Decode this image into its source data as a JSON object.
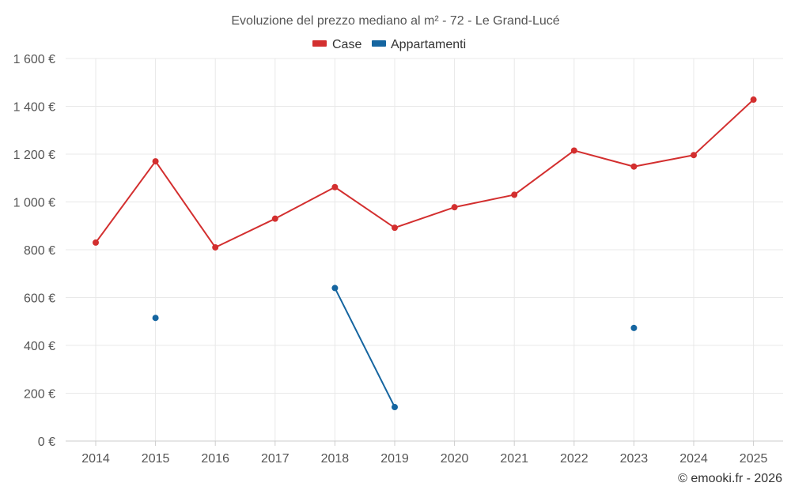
{
  "chart_data": {
    "type": "line",
    "title": "Evoluzione del prezzo mediano al m² - 72 - Le Grand-Lucé",
    "categories": [
      "2014",
      "2015",
      "2016",
      "2017",
      "2018",
      "2019",
      "2020",
      "2021",
      "2022",
      "2023",
      "2024",
      "2025"
    ],
    "series": [
      {
        "name": "Case",
        "color": "#d32f2f",
        "values": [
          830,
          1170,
          810,
          930,
          1062,
          892,
          978,
          1030,
          1215,
          1148,
          1196,
          1428
        ]
      },
      {
        "name": "Appartamenti",
        "color": "#1565a0",
        "values": [
          null,
          515,
          null,
          null,
          640,
          142,
          null,
          null,
          null,
          473,
          null,
          null
        ]
      }
    ],
    "ylim": [
      0,
      1600
    ],
    "y_ticks": [
      0,
      200,
      400,
      600,
      800,
      1000,
      1200,
      1400,
      1600
    ],
    "y_tick_labels": [
      "0 €",
      "200 €",
      "400 €",
      "600 €",
      "800 €",
      "1 000 €",
      "1 200 €",
      "1 400 €",
      "1 600 €"
    ],
    "grid": true,
    "legend_position": "top-center"
  },
  "credit": "© emooki.fr - 2026"
}
